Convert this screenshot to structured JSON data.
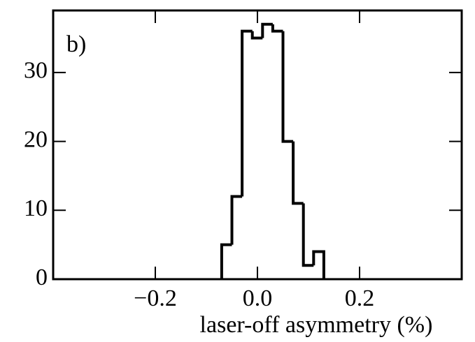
{
  "chart_data": {
    "type": "histogram",
    "panel_label": "b)",
    "xlabel": "laser-off asymmetry  (%)",
    "bins": [
      -0.07,
      -0.05,
      -0.03,
      -0.01,
      0.01,
      0.03,
      0.05,
      0.07,
      0.09,
      0.11,
      0.13
    ],
    "values": [
      5,
      12,
      36,
      35,
      37,
      36,
      20,
      11,
      2,
      4
    ],
    "color": "#000000",
    "xlim": [
      -0.4,
      0.4
    ],
    "ylim": [
      0,
      39
    ],
    "xticks": [
      {
        "value": -0.2,
        "label": "−0.2"
      },
      {
        "value": 0,
        "label": "0.0"
      },
      0.2
    ],
    "yticks": [
      0,
      10,
      20,
      30
    ]
  }
}
